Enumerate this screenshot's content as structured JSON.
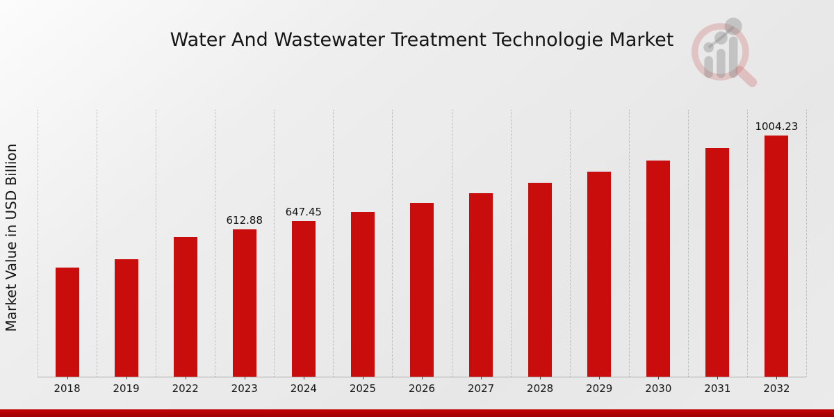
{
  "page": {
    "bottom_stripe": {
      "color_top": "#c50404",
      "color_bottom": "#9c0303"
    }
  },
  "logo": {
    "icon": "magnifier-bar-chart-watermark-logo",
    "ring_color": "rgba(205,110,110,0.33)",
    "bar_color": "rgba(135,135,135,0.38)"
  },
  "chart_data": {
    "type": "bar",
    "title": "Water And Wastewater Treatment Technologie Market",
    "xlabel": "",
    "ylabel": "Market Value in USD Billion",
    "categories": [
      "2018",
      "2019",
      "2022",
      "2023",
      "2024",
      "2025",
      "2026",
      "2027",
      "2028",
      "2029",
      "2030",
      "2031",
      "2032"
    ],
    "values": [
      455,
      490,
      580,
      612.88,
      647.45,
      684,
      722.5,
      763.3,
      806.3,
      851.8,
      899.9,
      950.6,
      1004.23
    ],
    "value_labels_shown": [
      "",
      "",
      "",
      "612.88",
      "647.45",
      "",
      "",
      "",
      "",
      "",
      "",
      "",
      "1004.23"
    ],
    "bar_color": "#c90d0d",
    "ylim": [
      0,
      1110
    ],
    "grid": {
      "vertical": true,
      "horizontal": false,
      "style": "dotted",
      "position": "band-edges"
    },
    "legend": "none",
    "y_tick_labels": "none"
  }
}
